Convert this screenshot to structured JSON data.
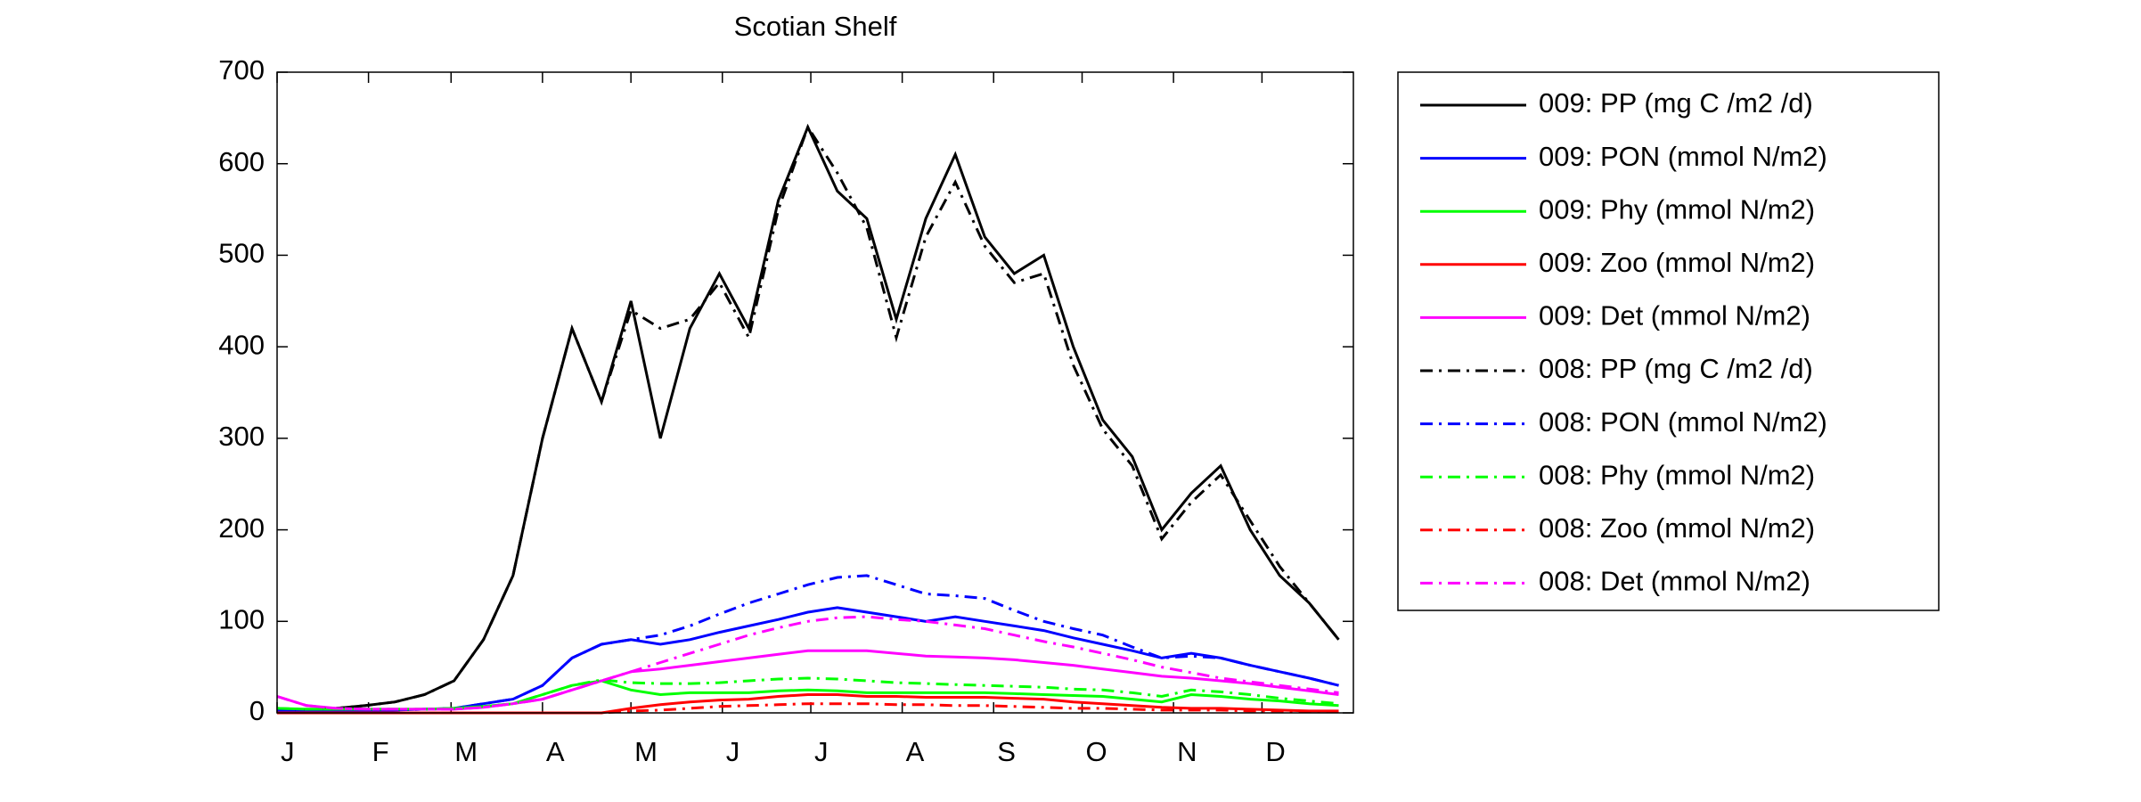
{
  "chart_data": {
    "type": "line",
    "title": "Scotian Shelf",
    "x": [
      0,
      10,
      20,
      30,
      40,
      50,
      60,
      70,
      80,
      90,
      100,
      110,
      120,
      130,
      140,
      150,
      160,
      170,
      180,
      190,
      200,
      210,
      220,
      230,
      240,
      250,
      260,
      270,
      280,
      290,
      300,
      310,
      320,
      330,
      340,
      350,
      360
    ],
    "xlim": [
      0,
      365
    ],
    "xticks": [
      {
        "value": 0,
        "label": "J"
      },
      {
        "value": 31,
        "label": "F"
      },
      {
        "value": 59,
        "label": "M"
      },
      {
        "value": 90,
        "label": "A"
      },
      {
        "value": 120,
        "label": "M"
      },
      {
        "value": 151,
        "label": "J"
      },
      {
        "value": 181,
        "label": "J"
      },
      {
        "value": 212,
        "label": "A"
      },
      {
        "value": 243,
        "label": "S"
      },
      {
        "value": 273,
        "label": "O"
      },
      {
        "value": 304,
        "label": "N"
      },
      {
        "value": 334,
        "label": "D"
      }
    ],
    "ylim": [
      0,
      700
    ],
    "yticks": [
      0,
      100,
      200,
      300,
      400,
      500,
      600,
      700
    ],
    "legend": "right",
    "series": [
      {
        "name": "009: PP (mg C /m2 /d)",
        "color": "#000000",
        "linestyle": "solid",
        "values": [
          0,
          3,
          5,
          8,
          12,
          20,
          35,
          80,
          150,
          300,
          420,
          340,
          450,
          300,
          420,
          480,
          420,
          560,
          640,
          570,
          540,
          430,
          540,
          610,
          520,
          480,
          500,
          400,
          320,
          280,
          200,
          240,
          270,
          200,
          150,
          120,
          80
        ]
      },
      {
        "name": "009: PON (mmol N/m2)",
        "color": "#0000ff",
        "linestyle": "solid",
        "values": [
          3,
          2,
          2,
          2,
          3,
          4,
          5,
          10,
          15,
          30,
          60,
          75,
          80,
          75,
          80,
          88,
          95,
          102,
          110,
          115,
          110,
          105,
          100,
          105,
          100,
          95,
          90,
          82,
          75,
          68,
          60,
          65,
          60,
          52,
          45,
          38,
          30
        ]
      },
      {
        "name": "009: Phy (mmol N/m2)",
        "color": "#00ff00",
        "linestyle": "solid",
        "values": [
          5,
          4,
          4,
          4,
          4,
          4,
          5,
          7,
          10,
          20,
          30,
          35,
          25,
          20,
          22,
          22,
          22,
          24,
          25,
          24,
          22,
          22,
          22,
          22,
          22,
          21,
          20,
          19,
          18,
          15,
          12,
          20,
          18,
          15,
          13,
          10,
          8
        ]
      },
      {
        "name": "009: Zoo (mmol N/m2)",
        "color": "#ff0000",
        "linestyle": "solid",
        "values": [
          0,
          0,
          0,
          0,
          0,
          0,
          0,
          0,
          0,
          0,
          0,
          0,
          5,
          9,
          12,
          14,
          15,
          18,
          20,
          20,
          18,
          18,
          17,
          17,
          17,
          16,
          15,
          12,
          10,
          8,
          6,
          5,
          5,
          4,
          3,
          2,
          2
        ]
      },
      {
        "name": "009: Det (mmol N/m2)",
        "color": "#ff00ff",
        "linestyle": "solid",
        "values": [
          18,
          8,
          5,
          4,
          4,
          4,
          4,
          6,
          10,
          15,
          25,
          35,
          45,
          48,
          52,
          56,
          60,
          64,
          68,
          68,
          68,
          65,
          62,
          61,
          60,
          58,
          55,
          52,
          48,
          44,
          40,
          38,
          35,
          32,
          28,
          24,
          20
        ]
      },
      {
        "name": "008: PP (mg C /m2 /d)",
        "color": "#000000",
        "linestyle": "dashdot",
        "values": [
          0,
          3,
          5,
          8,
          12,
          20,
          35,
          80,
          150,
          300,
          420,
          340,
          440,
          420,
          430,
          470,
          410,
          550,
          640,
          590,
          530,
          410,
          520,
          580,
          510,
          470,
          480,
          380,
          310,
          270,
          190,
          230,
          260,
          210,
          160,
          120,
          80
        ]
      },
      {
        "name": "008: PON (mmol N/m2)",
        "color": "#0000ff",
        "linestyle": "dashdot",
        "values": [
          3,
          2,
          2,
          2,
          3,
          4,
          5,
          10,
          15,
          30,
          60,
          75,
          80,
          85,
          95,
          108,
          120,
          130,
          140,
          148,
          150,
          140,
          130,
          128,
          125,
          112,
          100,
          92,
          85,
          72,
          60,
          62,
          60,
          52,
          45,
          38,
          30
        ]
      },
      {
        "name": "008: Phy (mmol N/m2)",
        "color": "#00ff00",
        "linestyle": "dashdot",
        "values": [
          5,
          4,
          4,
          4,
          4,
          4,
          5,
          7,
          10,
          20,
          30,
          36,
          33,
          32,
          32,
          33,
          35,
          37,
          38,
          37,
          35,
          33,
          32,
          31,
          30,
          29,
          28,
          26,
          25,
          22,
          18,
          25,
          23,
          20,
          16,
          13,
          10
        ]
      },
      {
        "name": "008: Zoo (mmol N/m2)",
        "color": "#ff0000",
        "linestyle": "dashdot",
        "values": [
          0,
          0,
          0,
          0,
          0,
          0,
          0,
          0,
          0,
          0,
          0,
          0,
          2,
          3,
          5,
          7,
          8,
          9,
          10,
          10,
          10,
          9,
          9,
          8,
          8,
          7,
          6,
          5,
          5,
          4,
          3,
          3,
          3,
          2,
          2,
          1,
          1
        ]
      },
      {
        "name": "008: Det (mmol N/m2)",
        "color": "#ff00ff",
        "linestyle": "dashdot",
        "values": [
          18,
          8,
          5,
          4,
          4,
          4,
          4,
          6,
          10,
          15,
          25,
          35,
          45,
          55,
          65,
          75,
          85,
          93,
          100,
          104,
          105,
          102,
          100,
          96,
          92,
          85,
          78,
          72,
          65,
          58,
          50,
          44,
          38,
          34,
          30,
          26,
          22
        ]
      }
    ]
  }
}
